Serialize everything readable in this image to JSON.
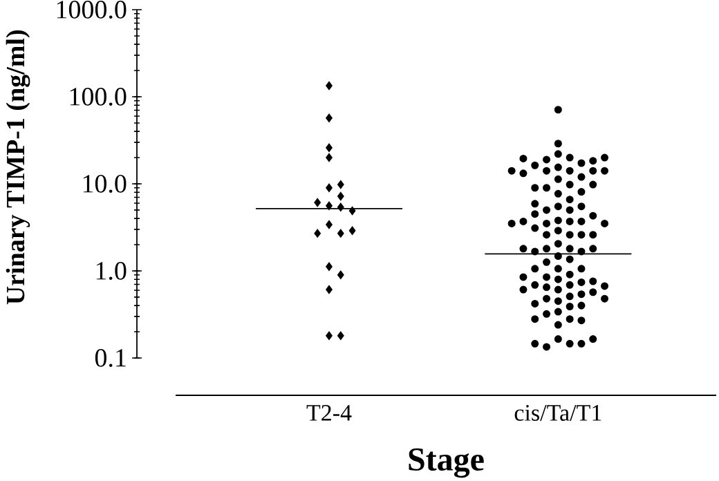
{
  "chart_data": {
    "type": "scatter",
    "xlabel": "Stage",
    "ylabel": "Urinary TIMP-1 (ng/ml)",
    "log": "y",
    "ylim": [
      0.1,
      1000
    ],
    "yticks": [
      0.1,
      {
        "value": 1,
        "label": "1.0"
      },
      {
        "value": 10,
        "label": "10.0"
      },
      {
        "value": 100,
        "label": "100.0"
      },
      {
        "value": 1000,
        "label": "1000.0"
      }
    ],
    "categories": [
      "T2-4",
      "cis/Ta/T1"
    ],
    "series": [
      {
        "type": "scatter",
        "color": "#000000",
        "marker": "diamond",
        "x": [
          "T2-4",
          "T2-4",
          "T2-4",
          "T2-4",
          "T2-4",
          "T2-4",
          "T2-4",
          "T2-4",
          "T2-4",
          "T2-4",
          "T2-4",
          "T2-4",
          "T2-4",
          "T2-4",
          "T2-4",
          "T2-4",
          "T2-4",
          "T2-4",
          "T2-4",
          "T2-4"
        ],
        "values": [
          134,
          57,
          26,
          20,
          9.0,
          9.8,
          7.2,
          5.6,
          5.4,
          6.1,
          4.9,
          3.4,
          2.7,
          2.7,
          2.9,
          1.12,
          0.9,
          0.61,
          0.18,
          0.18
        ]
      },
      {
        "type": "scatter",
        "color": "#000000",
        "marker": "circle",
        "x": [
          "cis/Ta/T1",
          "cis/Ta/T1",
          "cis/Ta/T1",
          "cis/Ta/T1",
          "cis/Ta/T1",
          "cis/Ta/T1",
          "cis/Ta/T1",
          "cis/Ta/T1",
          "cis/Ta/T1",
          "cis/Ta/T1",
          "cis/Ta/T1",
          "cis/Ta/T1",
          "cis/Ta/T1",
          "cis/Ta/T1",
          "cis/Ta/T1",
          "cis/Ta/T1",
          "cis/Ta/T1",
          "cis/Ta/T1",
          "cis/Ta/T1",
          "cis/Ta/T1",
          "cis/Ta/T1",
          "cis/Ta/T1",
          "cis/Ta/T1",
          "cis/Ta/T1",
          "cis/Ta/T1",
          "cis/Ta/T1",
          "cis/Ta/T1",
          "cis/Ta/T1",
          "cis/Ta/T1",
          "cis/Ta/T1",
          "cis/Ta/T1",
          "cis/Ta/T1",
          "cis/Ta/T1",
          "cis/Ta/T1",
          "cis/Ta/T1",
          "cis/Ta/T1",
          "cis/Ta/T1",
          "cis/Ta/T1",
          "cis/Ta/T1",
          "cis/Ta/T1",
          "cis/Ta/T1",
          "cis/Ta/T1",
          "cis/Ta/T1",
          "cis/Ta/T1",
          "cis/Ta/T1",
          "cis/Ta/T1",
          "cis/Ta/T1",
          "cis/Ta/T1",
          "cis/Ta/T1",
          "cis/Ta/T1",
          "cis/Ta/T1",
          "cis/Ta/T1",
          "cis/Ta/T1",
          "cis/Ta/T1",
          "cis/Ta/T1",
          "cis/Ta/T1",
          "cis/Ta/T1",
          "cis/Ta/T1",
          "cis/Ta/T1",
          "cis/Ta/T1",
          "cis/Ta/T1",
          "cis/Ta/T1",
          "cis/Ta/T1",
          "cis/Ta/T1",
          "cis/Ta/T1",
          "cis/Ta/T1",
          "cis/Ta/T1",
          "cis/Ta/T1",
          "cis/Ta/T1",
          "cis/Ta/T1",
          "cis/Ta/T1",
          "cis/Ta/T1",
          "cis/Ta/T1",
          "cis/Ta/T1",
          "cis/Ta/T1",
          "cis/Ta/T1",
          "cis/Ta/T1",
          "cis/Ta/T1",
          "cis/Ta/T1",
          "cis/Ta/T1",
          "cis/Ta/T1",
          "cis/Ta/T1",
          "cis/Ta/T1",
          "cis/Ta/T1",
          "cis/Ta/T1",
          "cis/Ta/T1",
          "cis/Ta/T1",
          "cis/Ta/T1",
          "cis/Ta/T1",
          "cis/Ta/T1",
          "cis/Ta/T1",
          "cis/Ta/T1"
        ],
        "values": [
          71,
          29,
          22,
          20,
          19,
          17.3,
          15.5,
          16.3,
          18.4,
          19.5,
          20,
          14.1,
          14.1,
          14.1,
          12.0,
          11.3,
          13.2,
          14.1,
          14.1,
          9.8,
          9.0,
          7.7,
          8.1,
          9.0,
          9.8,
          6.6,
          5.5,
          5.0,
          5.0,
          5.5,
          5.9,
          4.5,
          4.3,
          3.8,
          3.7,
          3.5,
          3.7,
          3.7,
          3.5,
          3.5,
          3.1,
          2.9,
          2.6,
          2.6,
          2.6,
          2.6,
          2.05,
          1.8,
          1.8,
          1.67,
          1.67,
          1.8,
          1.8,
          1.48,
          1.36,
          1.26,
          1.06,
          1.06,
          1.06,
          0.91,
          0.85,
          0.8,
          0.74,
          0.69,
          0.69,
          0.76,
          0.85,
          0.65,
          0.61,
          0.54,
          0.51,
          0.57,
          0.61,
          0.67,
          0.48,
          0.45,
          0.4,
          0.34,
          0.39,
          0.42,
          0.48,
          0.32,
          0.28,
          0.27,
          0.24,
          0.28,
          0.165,
          0.146,
          0.134,
          0.146,
          0.146,
          0.165
        ]
      }
    ],
    "ref_lines": [
      {
        "axis": "y",
        "value": 5.2,
        "color": "#000000"
      },
      {
        "axis": "y",
        "value": 1.57,
        "color": "#000000"
      }
    ]
  }
}
